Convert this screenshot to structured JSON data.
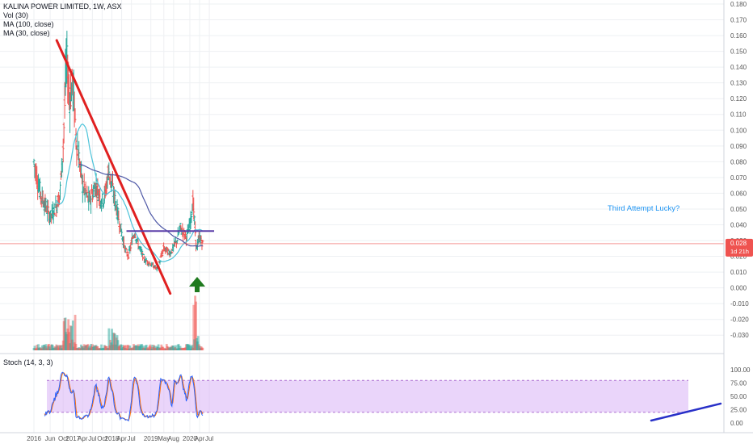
{
  "header": {
    "title": "KALINA POWER LIMITED, 1W, ASX",
    "vol_label": "Vol (30)",
    "ma100_label": "MA (100, close)",
    "ma30_label": "MA (30, close)"
  },
  "colors": {
    "up": "#26a69a",
    "down": "#ef5350",
    "downtrend": "#e02020",
    "resistance": "#5b3ea8",
    "ma30": "#4cc3d9",
    "ma100": "#4e58a6",
    "stoch_k": "#2962ff",
    "stoch_d": "#ff6d00",
    "stoch_band": "#d9b3f5",
    "arrow": "#1f7a1f",
    "annotation": "#2196f3",
    "price_tag": "#ef5350"
  },
  "price_tag": {
    "value": "0.028",
    "countdown": "1d 21h"
  },
  "annotation": {
    "text": "Third Attempt Lucky?"
  },
  "stoch": {
    "label": "Stoch (14, 3, 3)",
    "ticks": [
      "100.00",
      "75.00",
      "50.00",
      "25.00",
      "0.00"
    ],
    "upper_band": 80,
    "lower_band": 20
  },
  "chart_data": {
    "type": "bar",
    "subtype": "ohlc",
    "x_tick_labels": [
      "2016",
      "Jun",
      "Oct",
      "2017",
      "Apr",
      "Jul",
      "Oct",
      "2018",
      "Apr",
      "Jul",
      "2019",
      "May",
      "Aug",
      "2020",
      "Apr",
      "Jul"
    ],
    "y_tick_labels": [
      "0.180",
      "0.170",
      "0.160",
      "0.150",
      "0.140",
      "0.130",
      "0.120",
      "0.110",
      "0.100",
      "0.090",
      "0.080",
      "0.070",
      "0.060",
      "0.050",
      "0.040",
      "0.030",
      "0.020",
      "0.010",
      "0.000",
      "-0.010",
      "-0.020",
      "-0.030"
    ],
    "ylim": [
      -0.035,
      0.18
    ],
    "last_price": 0.028,
    "resistance_level": 0.036,
    "downtrend_line": [
      {
        "x": "2016-10",
        "y": 0.158
      },
      {
        "x": "2018-12",
        "y": 0.0
      }
    ],
    "anchors": [
      {
        "x": "2016-01",
        "price": 0.08
      },
      {
        "x": "2016-03",
        "price": 0.06
      },
      {
        "x": "2016-05",
        "price": 0.05
      },
      {
        "x": "2016-06",
        "price": 0.045
      },
      {
        "x": "2016-08",
        "price": 0.052
      },
      {
        "x": "2016-09",
        "price": 0.06
      },
      {
        "x": "2016-10",
        "price": 0.09
      },
      {
        "x": "2016-11",
        "price": 0.145
      },
      {
        "x": "2016-12",
        "price": 0.12
      },
      {
        "x": "2017-01",
        "price": 0.13
      },
      {
        "x": "2017-02",
        "price": 0.095
      },
      {
        "x": "2017-04",
        "price": 0.065
      },
      {
        "x": "2017-06",
        "price": 0.055
      },
      {
        "x": "2017-08",
        "price": 0.065
      },
      {
        "x": "2017-10",
        "price": 0.055
      },
      {
        "x": "2017-11",
        "price": 0.06
      },
      {
        "x": "2017-12",
        "price": 0.075
      },
      {
        "x": "2018-01",
        "price": 0.065
      },
      {
        "x": "2018-03",
        "price": 0.045
      },
      {
        "x": "2018-05",
        "price": 0.025
      },
      {
        "x": "2018-06",
        "price": 0.02
      },
      {
        "x": "2018-08",
        "price": 0.036
      },
      {
        "x": "2018-09",
        "price": 0.028
      },
      {
        "x": "2018-11",
        "price": 0.018
      },
      {
        "x": "2019-01",
        "price": 0.015
      },
      {
        "x": "2019-03",
        "price": 0.012
      },
      {
        "x": "2019-05",
        "price": 0.025
      },
      {
        "x": "2019-07",
        "price": 0.022
      },
      {
        "x": "2019-09",
        "price": 0.03
      },
      {
        "x": "2019-10",
        "price": 0.038
      },
      {
        "x": "2019-12",
        "price": 0.032
      },
      {
        "x": "2020-01",
        "price": 0.04
      },
      {
        "x": "2020-02",
        "price": 0.055
      },
      {
        "x": "2020-03",
        "price": 0.025
      },
      {
        "x": "2020-04",
        "price": 0.032
      },
      {
        "x": "2020-05",
        "price": 0.028
      }
    ]
  }
}
